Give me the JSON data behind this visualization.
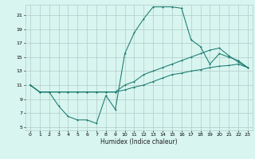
{
  "xlabel": "Humidex (Indice chaleur)",
  "bg_color": "#d8f5f0",
  "grid_color": "#b0ccc8",
  "line_color": "#1a7a6e",
  "xlim": [
    -0.5,
    23.5
  ],
  "ylim": [
    4.5,
    22.5
  ],
  "xticks": [
    0,
    1,
    2,
    3,
    4,
    5,
    6,
    7,
    8,
    9,
    10,
    11,
    12,
    13,
    14,
    15,
    16,
    17,
    18,
    19,
    20,
    21,
    22,
    23
  ],
  "yticks": [
    5,
    7,
    9,
    11,
    13,
    15,
    17,
    19,
    21
  ],
  "line1_x": [
    0,
    1,
    2,
    3,
    4,
    5,
    6,
    7,
    8,
    9,
    10,
    11,
    12,
    13,
    14,
    15,
    16,
    17,
    18,
    19,
    20,
    21,
    22,
    23
  ],
  "line1_y": [
    11,
    10,
    10,
    8,
    6.5,
    6.0,
    6.0,
    5.5,
    9.5,
    7.5,
    15.5,
    18.5,
    20.5,
    22.2,
    22.2,
    22.2,
    22.0,
    17.5,
    16.5,
    14.0,
    15.5,
    15.0,
    14.5,
    13.5
  ],
  "line2_x": [
    0,
    1,
    2,
    3,
    4,
    5,
    6,
    7,
    8,
    9,
    10,
    11,
    12,
    13,
    14,
    15,
    16,
    17,
    18,
    19,
    20,
    21,
    22,
    23
  ],
  "line2_y": [
    11,
    10,
    10,
    10,
    10,
    10,
    10,
    10,
    10,
    10,
    11,
    11.5,
    12.5,
    13,
    13.5,
    14,
    14.5,
    15,
    15.5,
    16,
    16.3,
    15.2,
    14.3,
    13.5
  ],
  "line3_x": [
    0,
    1,
    2,
    3,
    4,
    5,
    6,
    7,
    8,
    9,
    10,
    11,
    12,
    13,
    14,
    15,
    16,
    17,
    18,
    19,
    20,
    21,
    22,
    23
  ],
  "line3_y": [
    11,
    10,
    10,
    10,
    10,
    10,
    10,
    10,
    10,
    10,
    10.3,
    10.7,
    11.0,
    11.5,
    12.0,
    12.5,
    12.7,
    13.0,
    13.2,
    13.5,
    13.7,
    13.8,
    14.0,
    13.5
  ]
}
